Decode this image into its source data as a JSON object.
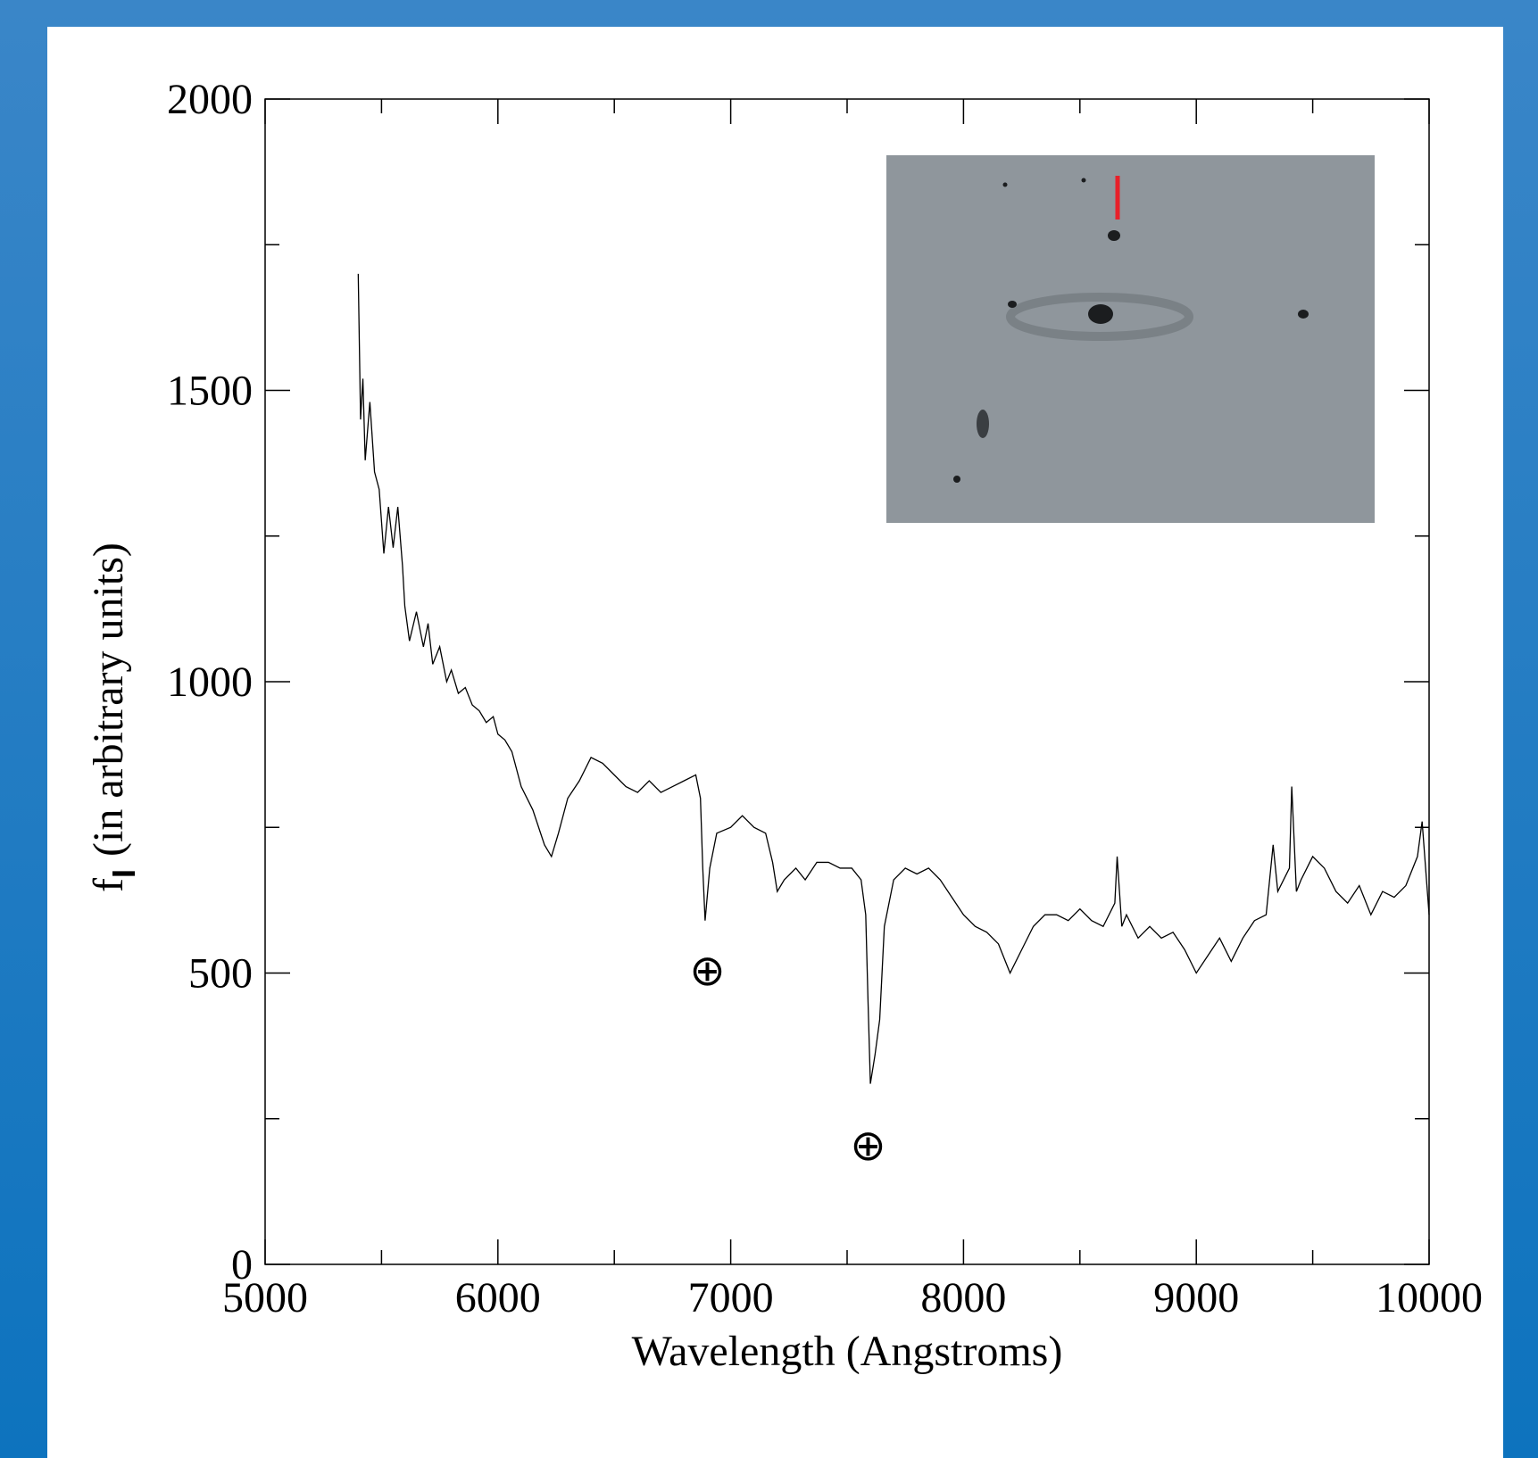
{
  "chart_data": {
    "type": "line",
    "xlabel": "Wavelength (Angstroms)",
    "ylabel": "f",
    "ylabel_subscript": "I",
    "ylabel_suffix": "(in arbitrary units)",
    "xlim": [
      5000,
      10000
    ],
    "ylim": [
      0,
      2000
    ],
    "xticks": [
      5000,
      6000,
      7000,
      8000,
      9000,
      10000
    ],
    "yticks": [
      0,
      500,
      1000,
      1500,
      2000
    ],
    "xminorticks": [
      5500,
      6500,
      7500,
      8500,
      9500
    ],
    "yminorticks": [
      250,
      750,
      1250,
      1750
    ],
    "color": "#000000",
    "annotations": [
      {
        "text": "⊕",
        "x": 6900,
        "y": 510
      },
      {
        "text": "⊕",
        "x": 7590,
        "y": 210
      }
    ],
    "x": [
      5400,
      5410,
      5420,
      5430,
      5450,
      5470,
      5490,
      5510,
      5530,
      5550,
      5570,
      5590,
      5600,
      5620,
      5650,
      5680,
      5700,
      5720,
      5750,
      5780,
      5800,
      5830,
      5860,
      5890,
      5920,
      5950,
      5980,
      6000,
      6030,
      6060,
      6100,
      6150,
      6200,
      6230,
      6260,
      6300,
      6350,
      6400,
      6450,
      6500,
      6550,
      6600,
      6650,
      6700,
      6750,
      6800,
      6850,
      6870,
      6880,
      6890,
      6910,
      6940,
      7000,
      7050,
      7100,
      7150,
      7180,
      7200,
      7230,
      7280,
      7320,
      7370,
      7420,
      7470,
      7520,
      7560,
      7580,
      7590,
      7600,
      7620,
      7640,
      7660,
      7700,
      7750,
      7800,
      7850,
      7900,
      7950,
      8000,
      8050,
      8100,
      8150,
      8200,
      8250,
      8300,
      8350,
      8400,
      8450,
      8500,
      8550,
      8600,
      8650,
      8660,
      8680,
      8700,
      8750,
      8800,
      8850,
      8900,
      8950,
      9000,
      9050,
      9100,
      9150,
      9200,
      9250,
      9300,
      9330,
      9350,
      9400,
      9410,
      9430,
      9450,
      9500,
      9550,
      9600,
      9650,
      9700,
      9750,
      9800,
      9850,
      9900,
      9950,
      9970,
      10000
    ],
    "y": [
      1700,
      1450,
      1520,
      1380,
      1480,
      1360,
      1330,
      1220,
      1300,
      1230,
      1300,
      1200,
      1130,
      1070,
      1120,
      1060,
      1100,
      1030,
      1060,
      1000,
      1020,
      980,
      990,
      960,
      950,
      930,
      940,
      910,
      900,
      880,
      820,
      780,
      720,
      700,
      740,
      800,
      830,
      870,
      860,
      840,
      820,
      810,
      830,
      810,
      820,
      830,
      840,
      800,
      680,
      590,
      680,
      740,
      750,
      770,
      750,
      740,
      690,
      640,
      660,
      680,
      660,
      690,
      690,
      680,
      680,
      660,
      600,
      450,
      310,
      360,
      420,
      580,
      660,
      680,
      670,
      680,
      660,
      630,
      600,
      580,
      570,
      550,
      500,
      540,
      580,
      600,
      600,
      590,
      610,
      590,
      580,
      620,
      700,
      580,
      600,
      560,
      580,
      560,
      570,
      540,
      500,
      530,
      560,
      520,
      560,
      590,
      600,
      720,
      640,
      680,
      820,
      640,
      660,
      700,
      680,
      640,
      620,
      650,
      600,
      640,
      630,
      650,
      700,
      760,
      600
    ]
  }
}
